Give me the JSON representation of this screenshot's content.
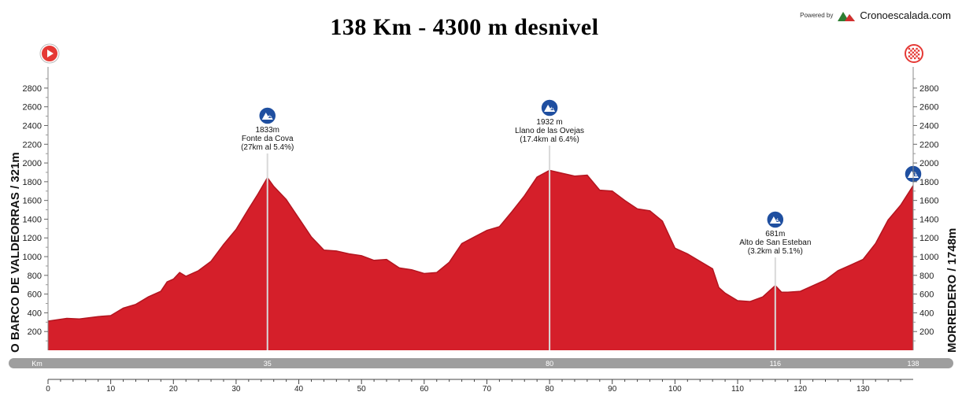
{
  "header": {
    "title": "138 Km - 4300 m desnivel",
    "powered_by": "Powered by",
    "brand": "Cronoescalada.com"
  },
  "chart_data": {
    "type": "area",
    "start_label": "O BARCO DE VALDEORRAS / 321m",
    "finish_label": "MORREDERO / 1748m",
    "km_bar_label": "Km",
    "km_markers": [
      "35",
      "80",
      "116",
      "138"
    ],
    "x_axis": {
      "min": 0,
      "max": 138,
      "ticks": [
        0,
        10,
        20,
        30,
        40,
        50,
        60,
        70,
        80,
        90,
        100,
        110,
        120,
        130
      ]
    },
    "y_axis": {
      "min": 0,
      "max": 2900,
      "ticks": [
        200,
        400,
        600,
        800,
        1000,
        1200,
        1400,
        1600,
        1800,
        2000,
        2200,
        2400,
        2600,
        2800
      ]
    },
    "colors": {
      "fill": "#d51f2a",
      "edge": "#b3151f",
      "km_bar": "#9e9e9e",
      "icon": "#1f4fa0"
    },
    "profile": [
      [
        0,
        321
      ],
      [
        3,
        330
      ],
      [
        5,
        345
      ],
      [
        8,
        350
      ],
      [
        10,
        380
      ],
      [
        12,
        440
      ],
      [
        14,
        500
      ],
      [
        16,
        560
      ],
      [
        18,
        640
      ],
      [
        19,
        720
      ],
      [
        20,
        770
      ],
      [
        21,
        820
      ],
      [
        22,
        800
      ],
      [
        24,
        840
      ],
      [
        26,
        960
      ],
      [
        28,
        1120
      ],
      [
        30,
        1300
      ],
      [
        32,
        1500
      ],
      [
        33.5,
        1680
      ],
      [
        35,
        1833
      ],
      [
        36,
        1760
      ],
      [
        38,
        1600
      ],
      [
        40,
        1420
      ],
      [
        42,
        1200
      ],
      [
        44,
        1080
      ],
      [
        46,
        1050
      ],
      [
        48,
        1040
      ],
      [
        50,
        1000
      ],
      [
        52,
        970
      ],
      [
        54,
        960
      ],
      [
        56,
        890
      ],
      [
        58,
        850
      ],
      [
        60,
        830
      ],
      [
        62,
        820
      ],
      [
        64,
        950
      ],
      [
        66,
        1130
      ],
      [
        68,
        1220
      ],
      [
        70,
        1270
      ],
      [
        72,
        1330
      ],
      [
        74,
        1470
      ],
      [
        76,
        1660
      ],
      [
        78,
        1840
      ],
      [
        80,
        1932
      ],
      [
        82,
        1880
      ],
      [
        84,
        1870
      ],
      [
        86,
        1860
      ],
      [
        88,
        1720
      ],
      [
        90,
        1690
      ],
      [
        92,
        1610
      ],
      [
        94,
        1500
      ],
      [
        96,
        1500
      ],
      [
        98,
        1370
      ],
      [
        100,
        1100
      ],
      [
        102,
        1020
      ],
      [
        104,
        960
      ],
      [
        106,
        860
      ],
      [
        107,
        680
      ],
      [
        108,
        600
      ],
      [
        110,
        540
      ],
      [
        112,
        510
      ],
      [
        114,
        580
      ],
      [
        116,
        681
      ],
      [
        117,
        630
      ],
      [
        118,
        610
      ],
      [
        120,
        640
      ],
      [
        122,
        680
      ],
      [
        124,
        760
      ],
      [
        126,
        840
      ],
      [
        128,
        920
      ],
      [
        130,
        960
      ],
      [
        132,
        1150
      ],
      [
        134,
        1380
      ],
      [
        136,
        1560
      ],
      [
        138,
        1748
      ]
    ],
    "climbs": [
      {
        "km": 35,
        "alt_label": "1833m",
        "name": "Fonte da Cova",
        "detail": "(27km al 5.4%)",
        "category": "1",
        "label_top": true
      },
      {
        "km": 80,
        "alt_label": "1932 m",
        "name": "Llano de las Ovejas",
        "detail": "(17.4km al 6.4%)",
        "category": "1",
        "label_top": true
      },
      {
        "km": 116,
        "alt_label": "681m",
        "name": "Alto de San Esteban",
        "detail": "(3.2km al 5.1%)",
        "category": "3",
        "label_top": true
      },
      {
        "km": 138,
        "alt_label": "",
        "name": "",
        "detail": "",
        "category": "E",
        "label_top": false
      }
    ]
  }
}
